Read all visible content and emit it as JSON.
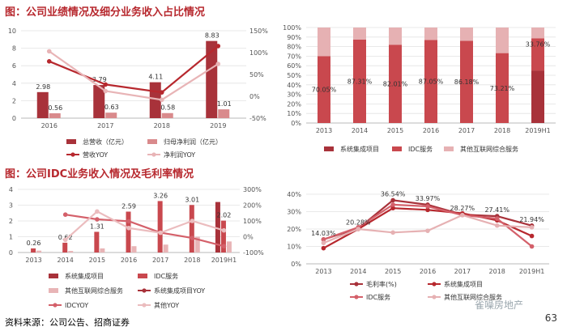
{
  "page": {
    "title1": "图：公司业绩情况及细分业务收入占比情况",
    "title2": "图：公司IDC业务收入情况及毛利率情况",
    "footer": "资料来源：公司公告、招商证券",
    "page_number": "63",
    "watermark": "雀噪房地产"
  },
  "chart_data": [
    {
      "id": "c1",
      "type": "bar",
      "categories": [
        "2016",
        "2017",
        "2018",
        "2019"
      ],
      "ylim": [
        0,
        10
      ],
      "yticks": [
        0,
        2,
        4,
        6,
        8,
        10
      ],
      "y2lim": [
        -50,
        150
      ],
      "y2ticks": [
        "-50%",
        "0%",
        "50%",
        "100%",
        "150%"
      ],
      "series": [
        {
          "name": "总营收（亿元）",
          "kind": "bar",
          "color": "#a8323a",
          "values": [
            2.98,
            3.79,
            4.11,
            8.83
          ],
          "labels": [
            "2.98",
            "3.79",
            "4.11",
            "8.83"
          ]
        },
        {
          "name": "归母净利润（亿元）",
          "kind": "bar",
          "color": "#d98a8c",
          "values": [
            0.56,
            0.63,
            0.58,
            1.01
          ],
          "labels": [
            "0.56",
            "0.63",
            "0.58",
            "1.01"
          ]
        },
        {
          "name": "营收YOY",
          "kind": "line",
          "axis": "right",
          "color": "#b7282e",
          "values": [
            80,
            27,
            9,
            115
          ]
        },
        {
          "name": "净利润YOY",
          "kind": "line",
          "axis": "right",
          "color": "#e8b4b6",
          "values": [
            103,
            12,
            -8,
            74
          ]
        }
      ]
    },
    {
      "id": "c2",
      "type": "bar",
      "stacked": true,
      "categories": [
        "2013",
        "2014",
        "2015",
        "2016",
        "2017",
        "2018",
        "2019H1"
      ],
      "ylim": [
        0,
        100
      ],
      "yticks": [
        "0%",
        "10%",
        "20%",
        "30%",
        "40%",
        "50%",
        "60%",
        "70%",
        "80%",
        "90%",
        "100%"
      ],
      "labels": [
        "70.05%",
        "87.31%",
        "82.01%",
        "87.05%",
        "86.18%",
        "73.21%",
        "33.76%"
      ],
      "series": [
        {
          "name": "系统集成项目",
          "color": "#a8323a",
          "values": [
            0,
            0,
            0,
            0,
            0,
            0,
            55
          ]
        },
        {
          "name": "IDC服务",
          "color": "#c9484e",
          "values": [
            70.05,
            87.31,
            82.01,
            87.05,
            86.18,
            73.21,
            33.76
          ]
        },
        {
          "name": "其他互联网综合服务",
          "color": "#e6b1b3",
          "values": [
            29.95,
            12.69,
            17.99,
            12.95,
            13.82,
            26.79,
            11.24
          ]
        }
      ]
    },
    {
      "id": "c3",
      "type": "bar",
      "categories": [
        "2013",
        "2014",
        "2015",
        "2016",
        "2017",
        "2018",
        "2019H1"
      ],
      "ylim": [
        0,
        4
      ],
      "yticks": [
        0,
        1,
        2,
        3,
        4
      ],
      "y2lim": [
        -100,
        300
      ],
      "y2ticks": [
        "-100%",
        "0%",
        "100%",
        "200%",
        "300%"
      ],
      "series": [
        {
          "name": "系统集成项目",
          "kind": "bar",
          "color": "#a8323a",
          "values": [
            0,
            0,
            0,
            0,
            0,
            0,
            3.2
          ]
        },
        {
          "name": "IDC服务",
          "kind": "bar",
          "color": "#c9484e",
          "values": [
            0.26,
            0.62,
            1.31,
            2.59,
            3.26,
            3.01,
            2.02
          ],
          "labels": [
            "0.26",
            "0.62",
            "1.31",
            "2.59",
            "3.26",
            "3.01",
            "2.02"
          ]
        },
        {
          "name": "其他互联网综合服务",
          "kind": "bar",
          "color": "#e8b4b6",
          "values": [
            0.12,
            0.1,
            0.26,
            0.4,
            0.5,
            1.0,
            0.7
          ]
        },
        {
          "name": "系统集成项目YOY",
          "kind": "line",
          "axis": "right",
          "color": "#a8323a",
          "values": [
            null,
            null,
            null,
            null,
            null,
            null,
            null
          ]
        },
        {
          "name": "IDCYOY",
          "kind": "line",
          "axis": "right",
          "color": "#d4606a",
          "values": [
            null,
            140,
            110,
            98,
            26,
            -8,
            -60
          ]
        },
        {
          "name": "其他YOY",
          "kind": "line",
          "axis": "right",
          "color": "#ebbcbe",
          "values": [
            null,
            -20,
            160,
            55,
            25,
            100,
            40
          ]
        }
      ]
    },
    {
      "id": "c4",
      "type": "line",
      "categories": [
        "2013",
        "2014",
        "2015",
        "2016",
        "2017",
        "2018",
        "2019H1"
      ],
      "ylim": [
        0,
        40
      ],
      "yticks": [
        "0%",
        "10%",
        "20%",
        "30%",
        "40%"
      ],
      "series": [
        {
          "name": "毛利率(%)",
          "color": "#a8323a",
          "values": [
            14.03,
            20.28,
            36.54,
            33.97,
            28.27,
            27.41,
            21.94
          ],
          "labels": [
            "14.03%",
            "20.28%",
            "36.54%",
            "33.97%",
            "28.27%",
            "27.41%",
            "21.94%"
          ]
        },
        {
          "name": "系统集成项目",
          "color": "#b7282e",
          "values": [
            9,
            20,
            32,
            31,
            29,
            25,
            16
          ]
        },
        {
          "name": "IDC服务",
          "color": "#d4606a",
          "values": [
            14,
            21,
            34,
            33,
            28,
            26,
            10
          ]
        },
        {
          "name": "其他互联网综合服务",
          "color": "#e6b1b3",
          "values": [
            12,
            20,
            18,
            19,
            28,
            22,
            21
          ]
        }
      ]
    }
  ]
}
